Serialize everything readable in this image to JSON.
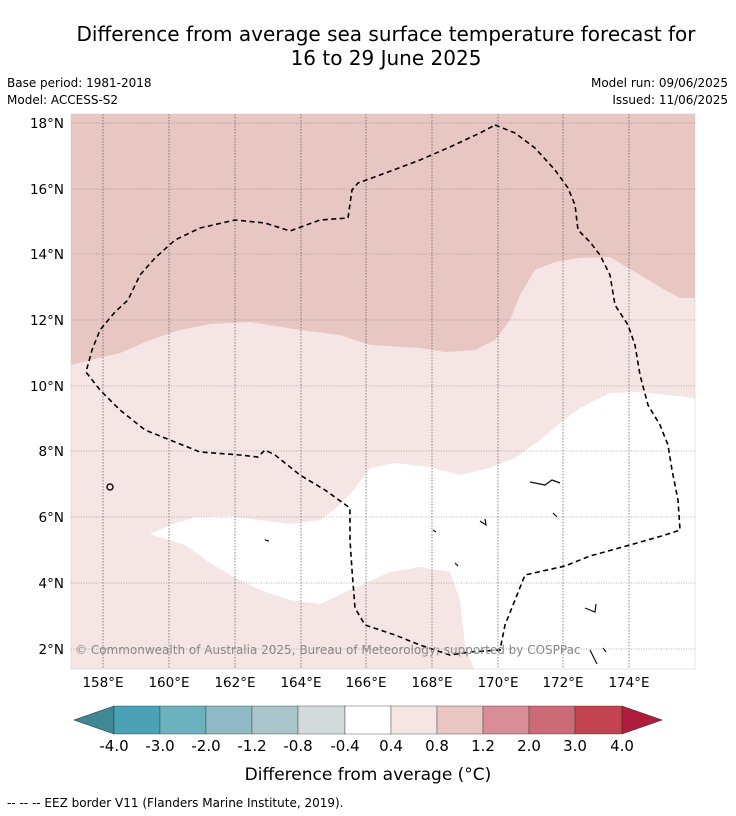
{
  "header": {
    "title_line1": "Difference from average sea surface temperature forecast for",
    "title_line2": "16 to 29 June 2025",
    "base_period": "Base period: 1981-2018",
    "model": "Model: ACCESS-S2",
    "model_run": "Model run: 09/06/2025",
    "issued": "Issued: 11/06/2025"
  },
  "map": {
    "lat_labels": [
      "18°N",
      "16°N",
      "14°N",
      "12°N",
      "10°N",
      "8°N",
      "6°N",
      "4°N",
      "2°N"
    ],
    "lon_labels": [
      "158°E",
      "160°E",
      "162°E",
      "164°E",
      "166°E",
      "168°E",
      "170°E",
      "172°E",
      "174°E"
    ],
    "copyright": "© Commonwealth of Australia 2025, Bureau of Meteorology; supported by COSPPac"
  },
  "colorbar": {
    "tick_labels": [
      "-4.0",
      "-3.0",
      "-2.0",
      "-1.2",
      "-0.8",
      "-0.4",
      "0.4",
      "0.8",
      "1.2",
      "2.0",
      "3.0",
      "4.0"
    ],
    "colors": [
      "#3f8895",
      "#4aa2b4",
      "#6bb1c0",
      "#8fbac5",
      "#a9c6cb",
      "#d3dadb",
      "#ffffff",
      "#f5e6e5",
      "#e9c6c2",
      "#d88d97",
      "#cc6a75",
      "#c1444f",
      "#b01d3c"
    ],
    "label": "Difference from average (°C)"
  },
  "legend": {
    "eez_text": "--  --  -- EEZ border V11 (Flanders Marine Institute, 2019)."
  }
}
